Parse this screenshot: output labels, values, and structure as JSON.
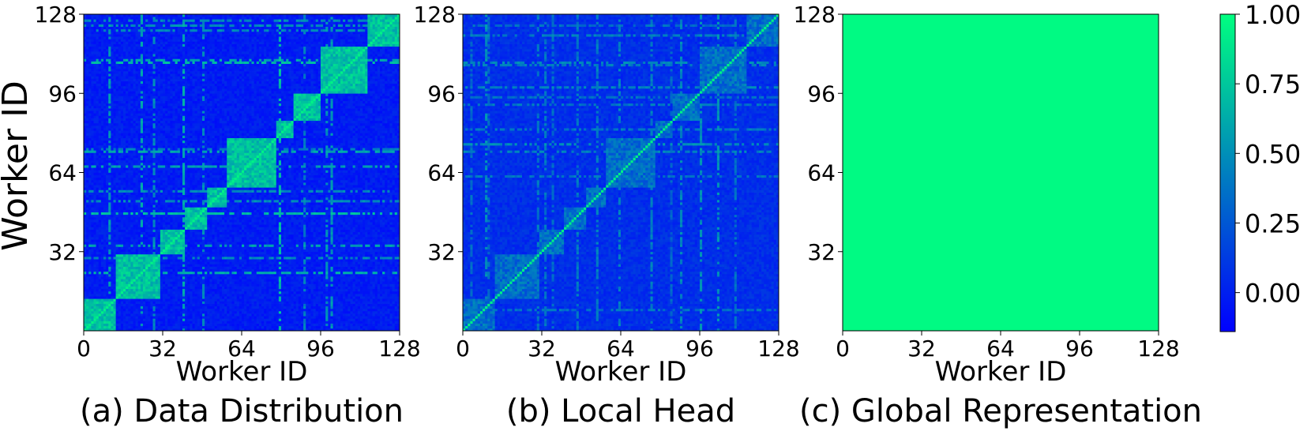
{
  "figure": {
    "ylabel": "Worker ID"
  },
  "chart_data": [
    {
      "type": "heatmap",
      "caption": "(a) Data Distribution",
      "xlabel": "Worker ID",
      "ylabel": "Worker ID",
      "n": 128,
      "xlim": [
        0,
        128
      ],
      "ylim": [
        0,
        128
      ],
      "x_ticks": [
        0,
        32,
        64,
        96,
        128
      ],
      "y_ticks": [
        32,
        64,
        96,
        128
      ],
      "clusters": [
        [
          0,
          13
        ],
        [
          13,
          31
        ],
        [
          31,
          41
        ],
        [
          41,
          50
        ],
        [
          50,
          58
        ],
        [
          58,
          78
        ],
        [
          78,
          85
        ],
        [
          85,
          96
        ],
        [
          96,
          115
        ],
        [
          115,
          128
        ]
      ],
      "diagonal_value": 0.95,
      "in_cluster_value": 0.78,
      "background_value": 0.05
    },
    {
      "type": "heatmap",
      "caption": "(b) Local Head",
      "xlabel": "Worker ID",
      "x_ticks": [
        0,
        32,
        64,
        96,
        128
      ],
      "y_ticks": [
        32,
        64,
        96,
        128
      ],
      "n": 128,
      "xlim": [
        0,
        128
      ],
      "ylim": [
        0,
        128
      ],
      "clusters": [
        [
          0,
          13
        ],
        [
          13,
          31
        ],
        [
          31,
          41
        ],
        [
          41,
          50
        ],
        [
          50,
          58
        ],
        [
          58,
          78
        ],
        [
          78,
          85
        ],
        [
          85,
          96
        ],
        [
          96,
          115
        ],
        [
          115,
          128
        ]
      ],
      "diagonal_value": 0.95,
      "in_cluster_value": 0.45,
      "background_value": 0.12
    },
    {
      "type": "heatmap",
      "caption": "(c) Global Representation",
      "xlabel": "Worker ID",
      "x_ticks": [
        0,
        32,
        64,
        96,
        128
      ],
      "y_ticks": [
        32,
        64,
        96,
        128
      ],
      "n": 128,
      "xlim": [
        0,
        128
      ],
      "ylim": [
        0,
        128
      ],
      "uniform_value": 0.98
    }
  ],
  "colorbar": {
    "ticks": [
      "1.00",
      "0.75",
      "0.50",
      "0.25",
      "0.00"
    ],
    "tick_values": [
      1.0,
      0.75,
      0.5,
      0.25,
      0.0
    ],
    "range": [
      -0.14,
      1.0
    ],
    "colormap": [
      "#0000ff",
      "#00ff80"
    ]
  }
}
